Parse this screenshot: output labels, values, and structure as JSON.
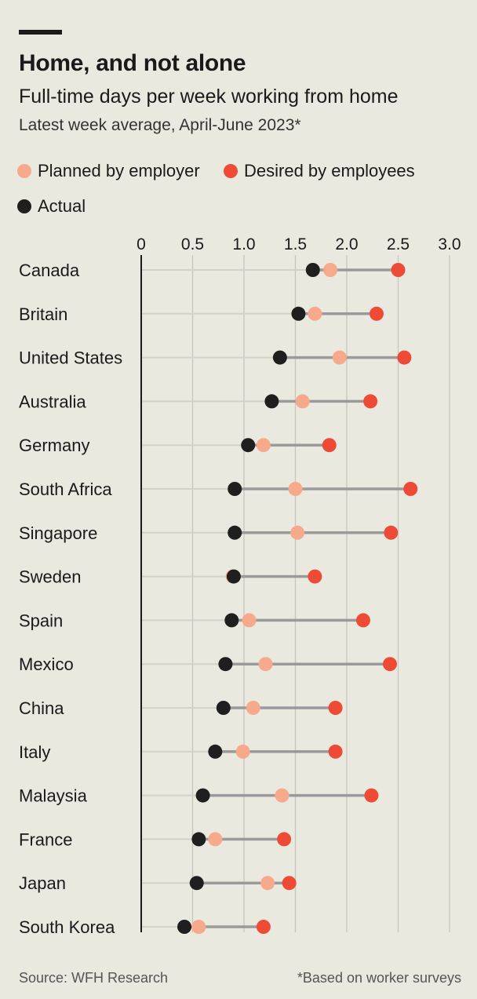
{
  "header": {
    "title": "Home, and not alone",
    "subtitle": "Full-time days per week working from home",
    "subtitle2": "Latest week average, April-June 2023*"
  },
  "legend": {
    "planned": "Planned by employer",
    "desired": "Desired by employees",
    "actual": "Actual"
  },
  "footer": {
    "source": "Source: WFH Research",
    "note": "*Based on worker surveys"
  },
  "colors": {
    "planned": "#f7a98c",
    "desired": "#ee4b36",
    "actual": "#1f1f1f",
    "connector": "#9a9a9a",
    "grid": "#c6c6be",
    "background": "#e9e9e0"
  },
  "chart_data": {
    "type": "dot",
    "xlim": [
      0,
      3.0
    ],
    "xticks": [
      "0",
      "0.5",
      "1.0",
      "1.5",
      "2.0",
      "2.5",
      "3.0"
    ],
    "xtick_values": [
      0,
      0.5,
      1.0,
      1.5,
      2.0,
      2.5,
      3.0
    ],
    "grid": true,
    "legend_position": "top",
    "categories": [
      "Canada",
      "Britain",
      "United States",
      "Australia",
      "Germany",
      "South Africa",
      "Singapore",
      "Sweden",
      "Spain",
      "Mexico",
      "China",
      "Italy",
      "Malaysia",
      "France",
      "Japan",
      "South Korea"
    ],
    "series": [
      {
        "name": "Actual",
        "key": "actual",
        "values": [
          1.67,
          1.53,
          1.35,
          1.27,
          1.04,
          0.91,
          0.91,
          0.9,
          0.88,
          0.82,
          0.8,
          0.72,
          0.6,
          0.56,
          0.54,
          0.42
        ]
      },
      {
        "name": "Planned by employer",
        "key": "planned",
        "values": [
          1.84,
          1.69,
          1.93,
          1.57,
          1.19,
          1.5,
          1.52,
          0.89,
          1.05,
          1.21,
          1.09,
          0.99,
          1.37,
          0.72,
          1.23,
          0.56
        ]
      },
      {
        "name": "Desired by employees",
        "key": "desired",
        "values": [
          2.5,
          2.29,
          2.56,
          2.23,
          1.83,
          2.62,
          2.43,
          1.69,
          2.16,
          2.42,
          1.89,
          1.89,
          2.24,
          1.39,
          1.44,
          1.19
        ]
      }
    ]
  }
}
